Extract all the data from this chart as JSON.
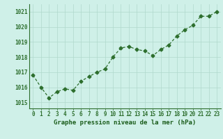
{
  "x": [
    0,
    1,
    2,
    3,
    4,
    5,
    6,
    7,
    8,
    9,
    10,
    11,
    12,
    13,
    14,
    15,
    16,
    17,
    18,
    19,
    20,
    21,
    22,
    23
  ],
  "y": [
    1016.8,
    1016.0,
    1015.3,
    1015.7,
    1015.9,
    1015.8,
    1016.4,
    1016.7,
    1017.0,
    1017.2,
    1018.0,
    1018.6,
    1018.7,
    1018.5,
    1018.4,
    1018.1,
    1018.5,
    1018.8,
    1019.4,
    1019.8,
    1020.1,
    1020.7,
    1020.7,
    1021.0
  ],
  "line_color": "#2d6e2d",
  "marker": "D",
  "marker_size": 2.5,
  "bg_color": "#cff0e8",
  "grid_color": "#b0d8cc",
  "xlabel": "Graphe pression niveau de la mer (hPa)",
  "xlabel_color": "#1a5c1a",
  "ylabel_ticks": [
    1015,
    1016,
    1017,
    1018,
    1019,
    1020,
    1021
  ],
  "ylim": [
    1014.6,
    1021.5
  ],
  "xlim": [
    -0.5,
    23.5
  ],
  "tick_color": "#2d6e2d",
  "tick_fontsize": 5.5,
  "xlabel_fontsize": 6.5,
  "spine_color": "#2d6e2d"
}
